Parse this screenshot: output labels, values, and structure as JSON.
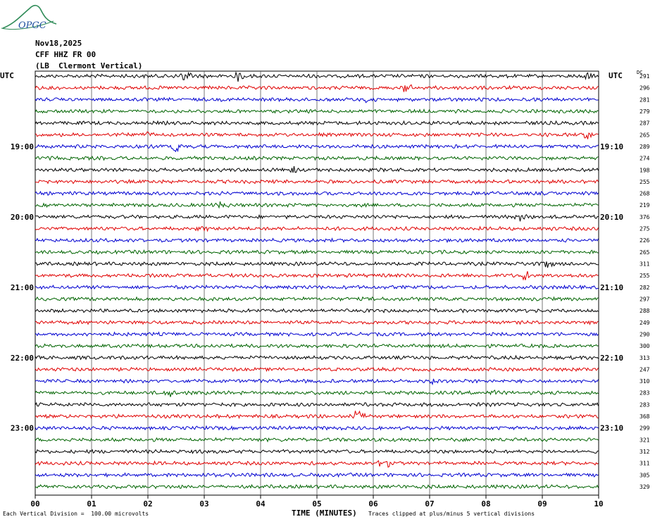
{
  "logo": {
    "text": "OPGC"
  },
  "header": {
    "date": "Nov18,2025",
    "channel": "CFF HHZ FR 00",
    "location": "(LB  Clermont Vertical)"
  },
  "left_axis_title": "UTC",
  "right_axis_title": "UTC",
  "dc_title": "DC",
  "footer": {
    "scale_note": "Each Vertical Division =  100.00 microvolts",
    "xlabel": "TIME (MINUTES)",
    "clip_note": "Traces clipped at plus/minus 5 vertical divisions"
  },
  "chart_data": {
    "type": "line",
    "title": "",
    "xlabel": "TIME (MINUTES)",
    "ylabel": "UTC",
    "xlim": [
      0,
      10
    ],
    "x_ticks": [
      "00",
      "01",
      "02",
      "03",
      "04",
      "05",
      "06",
      "07",
      "08",
      "09",
      "10"
    ],
    "trace_minutes": 10,
    "trace_count": 36,
    "trace_colors": [
      "#000000",
      "#e00000",
      "#0000d0",
      "#006400"
    ],
    "left_hour_labels": [
      {
        "trace": 6,
        "label": "19:00"
      },
      {
        "trace": 12,
        "label": "20:00"
      },
      {
        "trace": 18,
        "label": "21:00"
      },
      {
        "trace": 24,
        "label": "22:00"
      },
      {
        "trace": 30,
        "label": "23:00"
      }
    ],
    "right_hour_labels": [
      {
        "trace": 6,
        "label": "19:10"
      },
      {
        "trace": 12,
        "label": "20:10"
      },
      {
        "trace": 18,
        "label": "21:10"
      },
      {
        "trace": 24,
        "label": "22:10"
      },
      {
        "trace": 30,
        "label": "23:10"
      }
    ],
    "dc_offsets": [
      291,
      296,
      281,
      279,
      287,
      265,
      289,
      274,
      198,
      255,
      268,
      219,
      376,
      275,
      226,
      265,
      311,
      255,
      282,
      297,
      288,
      249,
      290,
      300,
      313,
      247,
      310,
      283,
      283,
      368,
      299,
      321,
      312,
      311,
      305,
      329
    ],
    "events": [
      {
        "trace": 0,
        "minute": 2.65,
        "amp": 8
      },
      {
        "trace": 0,
        "minute": 3.6,
        "amp": 6
      },
      {
        "trace": 0,
        "minute": 9.85,
        "amp": 7
      },
      {
        "trace": 1,
        "minute": 6.6,
        "amp": 6
      },
      {
        "trace": 2,
        "minute": 5.95,
        "amp": 7
      },
      {
        "trace": 5,
        "minute": 2.05,
        "amp": 7
      },
      {
        "trace": 5,
        "minute": 9.8,
        "amp": 6
      },
      {
        "trace": 6,
        "minute": 2.5,
        "amp": 8
      },
      {
        "trace": 8,
        "minute": 4.6,
        "amp": 6
      },
      {
        "trace": 11,
        "minute": 3.3,
        "amp": 5
      },
      {
        "trace": 12,
        "minute": 8.6,
        "amp": 8
      },
      {
        "trace": 13,
        "minute": 2.95,
        "amp": 5
      },
      {
        "trace": 16,
        "minute": 9.1,
        "amp": 5
      },
      {
        "trace": 17,
        "minute": 8.7,
        "amp": 6
      },
      {
        "trace": 26,
        "minute": 7.05,
        "amp": 5
      },
      {
        "trace": 27,
        "minute": 2.4,
        "amp": 6
      },
      {
        "trace": 27,
        "minute": 8.05,
        "amp": 6
      },
      {
        "trace": 29,
        "minute": 5.75,
        "amp": 10
      },
      {
        "trace": 33,
        "minute": 6.2,
        "amp": 9
      }
    ]
  }
}
